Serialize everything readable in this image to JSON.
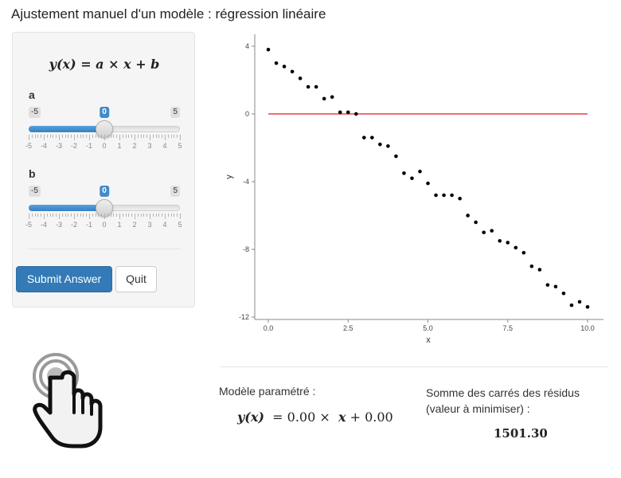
{
  "page_title": "Ajustement manuel d'un modèle : régression linéaire",
  "sidebar": {
    "formula": "y(x) = a × x + b",
    "sliders": [
      {
        "name": "a",
        "label": "a",
        "min": -5,
        "max": 5,
        "value": 0,
        "min_label": "-5",
        "max_label": "5",
        "value_label": "0",
        "ticks": [
          "-5",
          "-4",
          "-3",
          "-2",
          "-1",
          "0",
          "1",
          "2",
          "3",
          "4",
          "5"
        ]
      },
      {
        "name": "b",
        "label": "b",
        "min": -5,
        "max": 5,
        "value": 0,
        "min_label": "-5",
        "max_label": "5",
        "value_label": "0",
        "ticks": [
          "-5",
          "-4",
          "-3",
          "-2",
          "-1",
          "0",
          "1",
          "2",
          "3",
          "4",
          "5"
        ]
      }
    ],
    "buttons": {
      "submit": "Submit Answer",
      "quit": "Quit"
    },
    "colors": {
      "slider_fill": "#428bca",
      "submit": "#337ab7"
    }
  },
  "hand_icon": "pointer-hand-icon",
  "chart_data": {
    "type": "scatter",
    "xlabel": "x",
    "ylabel": "y",
    "xlim": [
      0,
      10
    ],
    "ylim": [
      -12,
      4
    ],
    "xticks": [
      0,
      2.5,
      5,
      7.5,
      10
    ],
    "xtick_labels": [
      "0.0",
      "2.5",
      "5.0",
      "7.5",
      "10.0"
    ],
    "yticks": [
      4,
      0,
      -4,
      -8,
      -12
    ],
    "ytick_labels": [
      "4",
      "0",
      "-4",
      "-8",
      "-12"
    ],
    "grid": false,
    "points": [
      [
        0.0,
        3.8
      ],
      [
        0.25,
        3.0
      ],
      [
        0.5,
        2.8
      ],
      [
        0.75,
        2.5
      ],
      [
        1.0,
        2.1
      ],
      [
        1.25,
        1.6
      ],
      [
        1.5,
        1.6
      ],
      [
        1.75,
        0.9
      ],
      [
        2.0,
        1.0
      ],
      [
        2.25,
        0.1
      ],
      [
        2.5,
        0.1
      ],
      [
        2.75,
        0.0
      ],
      [
        3.0,
        -1.4
      ],
      [
        3.25,
        -1.4
      ],
      [
        3.5,
        -1.8
      ],
      [
        3.75,
        -1.9
      ],
      [
        4.0,
        -2.5
      ],
      [
        4.25,
        -3.5
      ],
      [
        4.5,
        -3.8
      ],
      [
        4.75,
        -3.4
      ],
      [
        5.0,
        -4.1
      ],
      [
        5.25,
        -4.8
      ],
      [
        5.5,
        -4.8
      ],
      [
        5.75,
        -4.8
      ],
      [
        6.0,
        -5.0
      ],
      [
        6.25,
        -6.0
      ],
      [
        6.5,
        -6.4
      ],
      [
        6.75,
        -7.0
      ],
      [
        7.0,
        -6.9
      ],
      [
        7.25,
        -7.5
      ],
      [
        7.5,
        -7.6
      ],
      [
        7.75,
        -7.9
      ],
      [
        8.0,
        -8.2
      ],
      [
        8.25,
        -9.0
      ],
      [
        8.5,
        -9.2
      ],
      [
        8.75,
        -10.1
      ],
      [
        9.0,
        -10.2
      ],
      [
        9.25,
        -10.6
      ],
      [
        9.5,
        -11.3
      ],
      [
        9.75,
        -11.1
      ],
      [
        10.0,
        -11.4
      ]
    ],
    "model_line": {
      "a": 0,
      "b": 0,
      "color": "#e41a1c"
    }
  },
  "results": {
    "model_label": "Modèle paramétré :",
    "model_formula": {
      "fx": "y(x)",
      "eq": "= 0.00 ×",
      "var": "x",
      "rest": "+ 0.00"
    },
    "residuals_label": "Somme des carrés des résidus\n(valeur à minimiser) :",
    "residuals_label_line1": "Somme des carrés des résidus",
    "residuals_label_line2": "(valeur à minimiser) :",
    "residuals_value": "1501.30"
  }
}
